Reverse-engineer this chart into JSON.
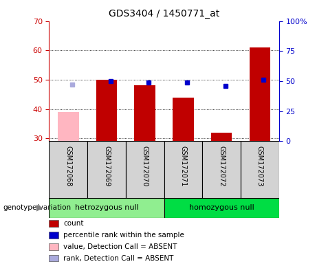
{
  "title": "GDS3404 / 1450771_at",
  "samples": [
    "GSM172068",
    "GSM172069",
    "GSM172070",
    "GSM172071",
    "GSM172072",
    "GSM172073"
  ],
  "group1_label": "hetrozygous null",
  "group2_label": "homozygous null",
  "group1_indices": [
    0,
    1,
    2
  ],
  "group2_indices": [
    3,
    4,
    5
  ],
  "bar_values": [
    null,
    50.0,
    48.0,
    44.0,
    32.0,
    61.0
  ],
  "bar_absent_values": [
    39.0,
    null,
    null,
    null,
    null,
    null
  ],
  "rank_values": [
    null,
    50.0,
    49.0,
    49.0,
    46.0,
    51.0
  ],
  "rank_absent_values": [
    47.0,
    null,
    null,
    null,
    null,
    null
  ],
  "ylim_left": [
    29,
    70
  ],
  "ylim_right": [
    0,
    100
  ],
  "yticks_left": [
    30,
    40,
    50,
    60,
    70
  ],
  "yticks_right": [
    0,
    25,
    50,
    75,
    100
  ],
  "ytick_labels_right": [
    "0",
    "25",
    "50",
    "75",
    "100%"
  ],
  "bar_color": "#C00000",
  "bar_absent_color": "#FFB6C1",
  "rank_color": "#0000CC",
  "rank_absent_color": "#AAAADD",
  "group1_bg": "#90EE90",
  "group2_bg": "#00DD44",
  "cell_bg": "#D3D3D3",
  "left_axis_color": "#CC0000",
  "right_axis_color": "#0000CC",
  "legend_items": [
    {
      "label": "count",
      "color": "#C00000"
    },
    {
      "label": "percentile rank within the sample",
      "color": "#0000CC"
    },
    {
      "label": "value, Detection Call = ABSENT",
      "color": "#FFB6C1"
    },
    {
      "label": "rank, Detection Call = ABSENT",
      "color": "#AAAADD"
    }
  ],
  "genotype_label": "genotype/variation",
  "bar_width": 0.55
}
